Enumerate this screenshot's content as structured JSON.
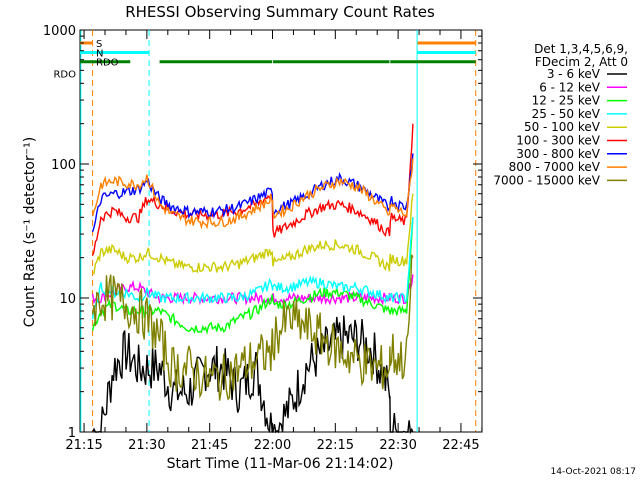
{
  "chart_data": {
    "type": "line",
    "title": "RHESSI Observing Summary Count Rates",
    "xlabel": "Start Time (11-Mar-06 21:14:02)",
    "ylabel": "Count Rate (s⁻¹ detector⁻¹)",
    "yscale": "log",
    "ylim": [
      1,
      1000
    ],
    "xlim_minutes": [
      0,
      96
    ],
    "x_tick_labels": [
      "21:15",
      "21:30",
      "21:45",
      "22:00",
      "22:15",
      "22:30",
      "22:45"
    ],
    "x_tick_minutes": [
      0.97,
      15.97,
      30.97,
      45.97,
      60.97,
      75.97,
      90.97
    ],
    "y_tick_labels": [
      "1",
      "10",
      "100",
      "1000"
    ],
    "y_tick_values": [
      1,
      10,
      100,
      1000
    ],
    "legend_header": [
      "Det 1,3,4,5,6,9,",
      "FDecim 2, Att 0"
    ],
    "legend_position": "right",
    "timestamp": "14-Oct-2021 08:17",
    "x_minutes": [
      3,
      5,
      8,
      11,
      14,
      16,
      19,
      22,
      26,
      30,
      34,
      38,
      42,
      45.9,
      46.1,
      50,
      54,
      58,
      62,
      66,
      70,
      73.9,
      74.1,
      76,
      78,
      79.5
    ],
    "series": [
      {
        "name": "3 - 6 keV",
        "color": "#000000",
        "values": [
          1,
          1,
          3,
          4,
          3,
          3,
          3,
          2,
          2,
          3,
          3,
          2,
          3,
          1,
          1,
          1.5,
          3,
          4,
          5,
          5,
          4,
          2,
          1,
          1,
          1,
          1
        ]
      },
      {
        "name": "6 - 12 keV",
        "color": "#ff00ff",
        "values": [
          10,
          10,
          11,
          12,
          12,
          11,
          10,
          10,
          10,
          10,
          10,
          10,
          10,
          10,
          10,
          10,
          10,
          10,
          10,
          10,
          10,
          10,
          10,
          10,
          10,
          15
        ]
      },
      {
        "name": "12 - 25 keV",
        "color": "#00ff00",
        "values": [
          6,
          8,
          9,
          8,
          8,
          8,
          8,
          7,
          6,
          6,
          6,
          7,
          8,
          10,
          9,
          9,
          10,
          11,
          11,
          10,
          9,
          8,
          8,
          8,
          8,
          40
        ]
      },
      {
        "name": "25 - 50 keV",
        "color": "#00ffff",
        "values": [
          7,
          12,
          11,
          11,
          10,
          11,
          10,
          10,
          10,
          10,
          10,
          10,
          11,
          13,
          12,
          12,
          13,
          13,
          12,
          12,
          11,
          10,
          10,
          10,
          10,
          40
        ]
      },
      {
        "name": "50 - 100 keV",
        "color": "#cccc00",
        "values": [
          15,
          22,
          23,
          20,
          20,
          22,
          20,
          18,
          17,
          17,
          17,
          18,
          20,
          23,
          18,
          20,
          23,
          25,
          25,
          23,
          20,
          17,
          20,
          19,
          19,
          60
        ]
      },
      {
        "name": "100 - 300 keV",
        "color": "#ff0000",
        "values": [
          20,
          40,
          45,
          40,
          40,
          55,
          50,
          45,
          42,
          42,
          42,
          45,
          50,
          60,
          30,
          35,
          42,
          48,
          50,
          45,
          38,
          30,
          40,
          38,
          37,
          200
        ]
      },
      {
        "name": "300 - 800 keV",
        "color": "#0000ff",
        "values": [
          30,
          55,
          60,
          62,
          65,
          75,
          55,
          48,
          44,
          44,
          45,
          48,
          55,
          63,
          45,
          50,
          58,
          70,
          78,
          70,
          58,
          47,
          55,
          50,
          48,
          120
        ]
      },
      {
        "name": "800 - 7000 keV",
        "color": "#ff8000",
        "values": [
          40,
          70,
          75,
          72,
          70,
          80,
          50,
          42,
          38,
          37,
          37,
          40,
          47,
          55,
          42,
          47,
          58,
          67,
          75,
          68,
          55,
          42,
          50,
          45,
          42,
          110
        ]
      },
      {
        "name": "7000 - 15000 keV",
        "color": "#808000",
        "values": [
          8,
          10,
          10,
          9,
          8,
          7,
          5,
          3,
          3,
          2.5,
          2.5,
          3,
          3.5,
          4,
          5,
          7,
          6,
          5,
          4,
          3.5,
          3,
          3,
          4,
          3.5,
          3.5,
          20
        ]
      }
    ],
    "state_bars": [
      {
        "label": "S",
        "color": "#ff8000",
        "level_value": 800
      },
      {
        "label": "N",
        "color": "#00ffff",
        "level_value": 680
      },
      {
        "label": "RDO",
        "color": "#008000",
        "level_value": 580
      }
    ],
    "rdo_label_left": "RDO",
    "vertical_lines": [
      {
        "minute": 0.2,
        "color": "#00ffff",
        "style": "solid"
      },
      {
        "minute": 3,
        "color": "#ff8000",
        "style": "dashed"
      },
      {
        "minute": 16.5,
        "color": "#00ffff",
        "style": "dashed"
      },
      {
        "minute": 80.5,
        "color": "#00ffff",
        "style": "solid"
      },
      {
        "minute": 94.5,
        "color": "#ff8000",
        "style": "dashed"
      }
    ]
  }
}
